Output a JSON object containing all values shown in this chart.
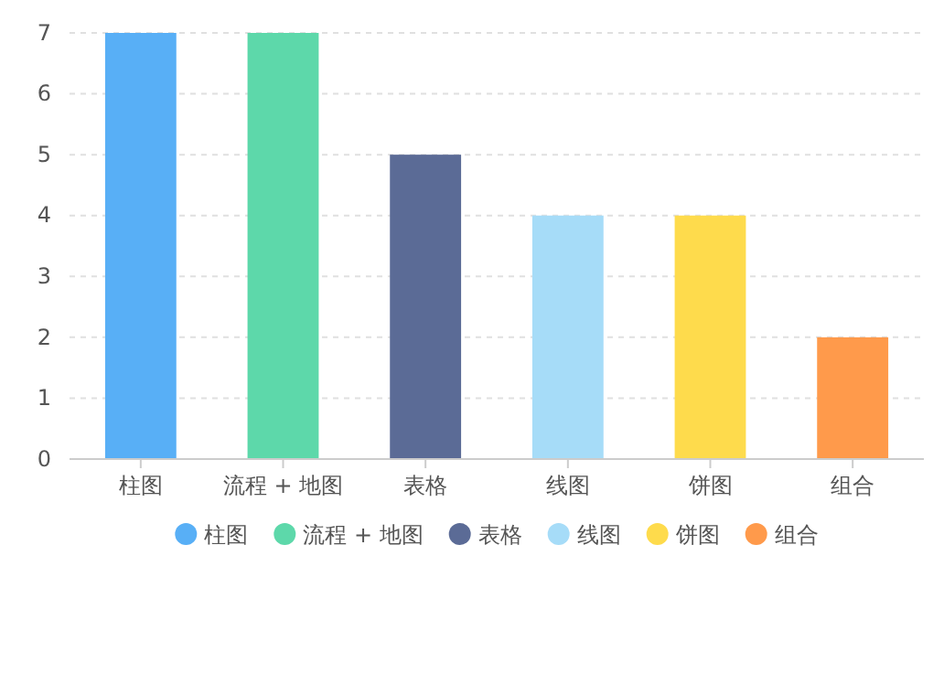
{
  "chart_data": {
    "type": "bar",
    "categories": [
      "柱图",
      "流程 + 地图",
      "表格",
      "线图",
      "饼图",
      "组合"
    ],
    "series": [
      {
        "name": "柱图",
        "color": "#58aff6",
        "values": [
          7,
          null,
          null,
          null,
          null,
          null
        ]
      },
      {
        "name": "流程 + 地图",
        "color": "#5dd8aa",
        "values": [
          null,
          7,
          null,
          null,
          null,
          null
        ]
      },
      {
        "name": "表格",
        "color": "#5b6b96",
        "values": [
          null,
          null,
          5,
          null,
          null,
          null
        ]
      },
      {
        "name": "线图",
        "color": "#a6dcf8",
        "values": [
          null,
          null,
          null,
          4,
          null,
          null
        ]
      },
      {
        "name": "饼图",
        "color": "#fedb4c",
        "values": [
          null,
          null,
          null,
          null,
          4,
          null
        ]
      },
      {
        "name": "组合",
        "color": "#ff9a4b",
        "values": [
          null,
          null,
          null,
          null,
          null,
          2
        ]
      }
    ],
    "ylim": [
      0,
      7
    ],
    "yticks": [
      0,
      1,
      2,
      3,
      4,
      5,
      6,
      7
    ],
    "grid": "y",
    "legend": "bottom"
  }
}
